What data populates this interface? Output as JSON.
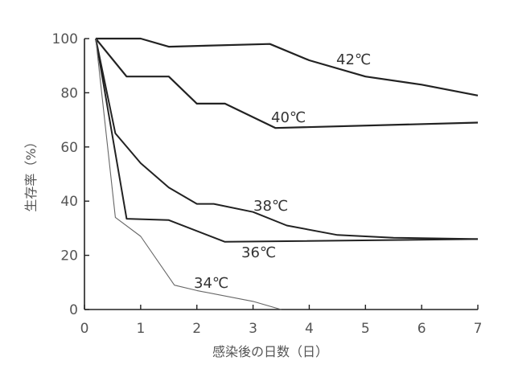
{
  "chart_data": {
    "type": "line",
    "title": "",
    "xlabel": "感染後の日数（日）",
    "ylabel": "生存率（%）",
    "xlim": [
      0,
      7
    ],
    "ylim": [
      0,
      100
    ],
    "x_ticks": [
      "0",
      "1",
      "2",
      "3",
      "4",
      "5",
      "6",
      "7"
    ],
    "y_ticks": [
      "0",
      "20",
      "40",
      "60",
      "80",
      "100"
    ],
    "grid": false,
    "legend": "none",
    "series": [
      {
        "name": "42℃",
        "color": "#222222",
        "x": [
          0.2,
          1.0,
          1.5,
          3.3,
          4.0,
          5.0,
          6.0,
          7.0
        ],
        "y": [
          100,
          100,
          97,
          98,
          92,
          86,
          83,
          79
        ]
      },
      {
        "name": "40℃",
        "color": "#222222",
        "x": [
          0.2,
          0.75,
          1.0,
          1.5,
          2.0,
          2.5,
          3.4,
          7.0
        ],
        "y": [
          100,
          86,
          86,
          86,
          76,
          76,
          67,
          69
        ]
      },
      {
        "name": "38℃",
        "color": "#222222",
        "x": [
          0.2,
          0.55,
          1.0,
          1.5,
          2.0,
          2.3,
          3.0,
          3.6,
          4.5,
          5.5,
          7.0
        ],
        "y": [
          100,
          65,
          54,
          45,
          39,
          39,
          36,
          31,
          27.5,
          26.5,
          26
        ]
      },
      {
        "name": "36℃",
        "color": "#222222",
        "x": [
          0.2,
          0.75,
          1.5,
          2.5,
          7.0
        ],
        "y": [
          100,
          33.5,
          33,
          25,
          26
        ]
      },
      {
        "name": "34℃",
        "color": "#666666",
        "x": [
          0.2,
          0.55,
          1.0,
          1.6,
          2.0,
          3.0,
          3.5
        ],
        "y": [
          100,
          34,
          27,
          9,
          7,
          3,
          0
        ]
      }
    ]
  }
}
